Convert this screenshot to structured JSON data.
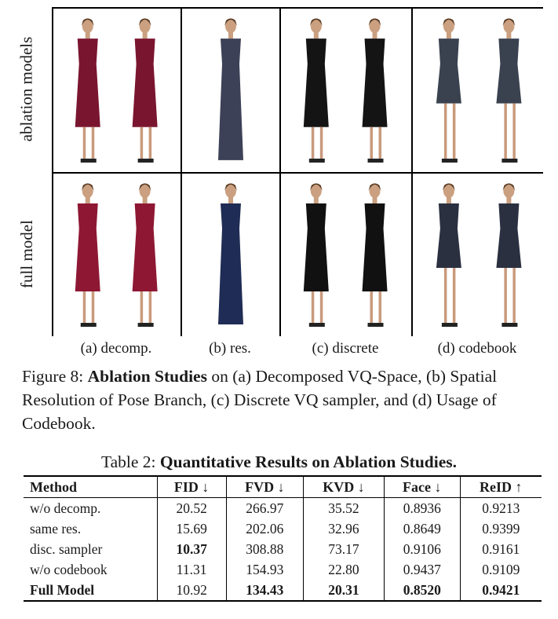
{
  "figure": {
    "row_labels": [
      "ablation models",
      "full model"
    ],
    "col_labels": [
      "(a) decomp.",
      "(b) res.",
      "(c) discrete",
      "(d) codebook"
    ],
    "caption": {
      "prefix": "Figure 8: ",
      "bold": "Ablation Studies",
      "rest": " on (a) Decomposed VQ-Space, (b) Spatial Resolution of Pose Branch, (c) Discrete VQ sampler, and (d) Usage of Codebook."
    },
    "images": [
      {
        "row": "ablation models",
        "column": "(a) decomp.",
        "dress_color": "#7a1530",
        "figures": 2
      },
      {
        "row": "ablation models",
        "column": "(b) res.",
        "dress_color": "#3d4157",
        "figures": 1
      },
      {
        "row": "ablation models",
        "column": "(c) discrete",
        "dress_color": "#141414",
        "figures": 2
      },
      {
        "row": "ablation models",
        "column": "(d) codebook",
        "dress_color": "#3a4250",
        "figures": 2
      },
      {
        "row": "full model",
        "column": "(a) decomp.",
        "dress_color": "#8e1834",
        "figures": 2
      },
      {
        "row": "full model",
        "column": "(b) res.",
        "dress_color": "#1f2c55",
        "figures": 1
      },
      {
        "row": "full model",
        "column": "(c) discrete",
        "dress_color": "#111111",
        "figures": 2
      },
      {
        "row": "full model",
        "column": "(d) codebook",
        "dress_color": "#2a3040",
        "figures": 2
      }
    ]
  },
  "table": {
    "title_prefix": "Table 2: ",
    "title_bold": "Quantitative Results on Ablation Studies.",
    "headers": [
      "Method",
      "FID ↓",
      "FVD ↓",
      "KVD ↓",
      "Face ↓",
      "ReID ↑"
    ],
    "rows": [
      {
        "cells": [
          "w/o decomp.",
          "20.52",
          "266.97",
          "35.52",
          "0.8936",
          "0.9213"
        ],
        "bold": [
          false,
          false,
          false,
          false,
          false,
          false
        ]
      },
      {
        "cells": [
          "same res.",
          "15.69",
          "202.06",
          "32.96",
          "0.8649",
          "0.9399"
        ],
        "bold": [
          false,
          false,
          false,
          false,
          false,
          false
        ]
      },
      {
        "cells": [
          "disc. sampler",
          "10.37",
          "308.88",
          "73.17",
          "0.9106",
          "0.9161"
        ],
        "bold": [
          false,
          true,
          false,
          false,
          false,
          false
        ]
      },
      {
        "cells": [
          "w/o codebook",
          "11.31",
          "154.93",
          "22.80",
          "0.9437",
          "0.9109"
        ],
        "bold": [
          false,
          false,
          false,
          false,
          false,
          false
        ]
      },
      {
        "cells": [
          "Full Model",
          "10.92",
          "134.43",
          "20.31",
          "0.8520",
          "0.9421"
        ],
        "bold": [
          true,
          false,
          true,
          true,
          true,
          true
        ]
      }
    ]
  }
}
